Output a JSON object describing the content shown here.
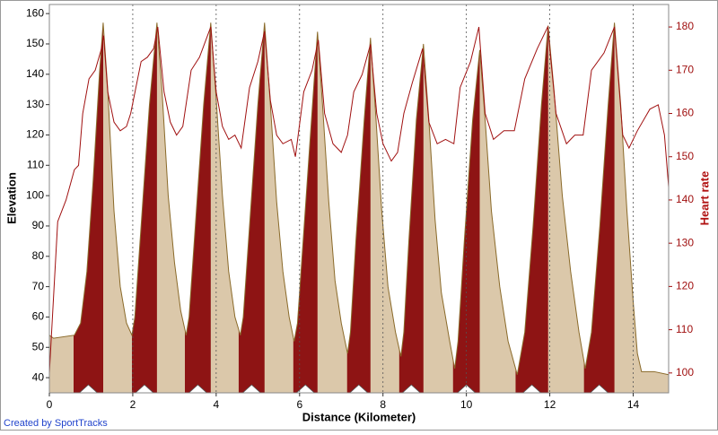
{
  "chart_data": {
    "type": "area-line",
    "xlabel": "Distance (Kilometer)",
    "ylabel": "Elevation",
    "y2label": "Heart rate",
    "xlim": [
      0,
      14.85
    ],
    "xticks": [
      0,
      2,
      4,
      6,
      8,
      10,
      12,
      14
    ],
    "ylim": [
      35,
      163
    ],
    "yticks": [
      40,
      50,
      60,
      70,
      80,
      90,
      100,
      110,
      120,
      130,
      140,
      150,
      160
    ],
    "y2lim": [
      95.4,
      185.2
    ],
    "y2ticks": [
      100,
      110,
      120,
      130,
      140,
      150,
      160,
      170,
      180
    ],
    "grid": "x",
    "highlight_color": "#8e1414",
    "highlight_ranges": [
      [
        0.58,
        1.29
      ],
      [
        1.98,
        2.58
      ],
      [
        3.25,
        3.87
      ],
      [
        4.54,
        5.16
      ],
      [
        5.85,
        6.43
      ],
      [
        7.14,
        7.7
      ],
      [
        8.39,
        8.97
      ],
      [
        9.68,
        10.32
      ],
      [
        11.18,
        11.96
      ],
      [
        12.82,
        13.55
      ]
    ],
    "series": [
      {
        "name": "Elevation",
        "color": "#dbc8aa",
        "line_color": "#8a6a2a",
        "x": [
          0,
          0.1,
          0.6,
          0.75,
          0.9,
          1.05,
          1.2,
          1.29,
          1.4,
          1.55,
          1.7,
          1.85,
          1.98,
          2.05,
          2.2,
          2.4,
          2.58,
          2.7,
          2.85,
          3.0,
          3.15,
          3.28,
          3.35,
          3.5,
          3.7,
          3.87,
          4.0,
          4.15,
          4.3,
          4.45,
          4.58,
          4.65,
          4.8,
          5.0,
          5.16,
          5.3,
          5.45,
          5.6,
          5.75,
          5.87,
          5.95,
          6.1,
          6.3,
          6.43,
          6.55,
          6.7,
          6.85,
          7.0,
          7.15,
          7.22,
          7.35,
          7.55,
          7.7,
          7.82,
          7.97,
          8.12,
          8.3,
          8.43,
          8.5,
          8.62,
          8.8,
          8.97,
          9.1,
          9.25,
          9.4,
          9.6,
          9.72,
          9.8,
          9.95,
          10.15,
          10.32,
          10.45,
          10.6,
          10.8,
          11.0,
          11.22,
          11.4,
          11.6,
          11.8,
          11.96,
          12.1,
          12.3,
          12.5,
          12.7,
          12.85,
          13.0,
          13.2,
          13.4,
          13.55,
          13.7,
          13.85,
          14.0,
          14.1,
          14.2,
          14.5,
          14.85
        ],
        "values": [
          54,
          53,
          54,
          58,
          75,
          105,
          140,
          157,
          135,
          95,
          70,
          58,
          54,
          60,
          90,
          130,
          157,
          135,
          100,
          78,
          62,
          54,
          60,
          90,
          130,
          157,
          132,
          100,
          75,
          60,
          54,
          60,
          90,
          130,
          157,
          130,
          98,
          75,
          60,
          52,
          58,
          88,
          128,
          154,
          130,
          98,
          72,
          58,
          48,
          55,
          85,
          125,
          152,
          128,
          95,
          70,
          55,
          47,
          55,
          85,
          125,
          150,
          125,
          92,
          68,
          52,
          43,
          52,
          85,
          125,
          148,
          125,
          95,
          70,
          52,
          41,
          55,
          90,
          130,
          156,
          135,
          100,
          75,
          55,
          43,
          55,
          90,
          130,
          157,
          130,
          95,
          65,
          48,
          42,
          42,
          41
        ]
      },
      {
        "name": "Heart rate",
        "color": "#a01010",
        "axis": "y2",
        "x": [
          0,
          0.2,
          0.4,
          0.6,
          0.7,
          0.8,
          0.95,
          1.1,
          1.25,
          1.3,
          1.4,
          1.55,
          1.7,
          1.85,
          1.95,
          2.2,
          2.35,
          2.5,
          2.6,
          2.75,
          2.9,
          3.05,
          3.2,
          3.4,
          3.6,
          3.87,
          4.0,
          4.15,
          4.3,
          4.45,
          4.6,
          4.8,
          5.0,
          5.16,
          5.3,
          5.45,
          5.6,
          5.8,
          5.9,
          6.1,
          6.3,
          6.45,
          6.6,
          6.8,
          7.0,
          7.15,
          7.3,
          7.5,
          7.7,
          7.85,
          8.0,
          8.2,
          8.35,
          8.5,
          8.7,
          8.95,
          9.1,
          9.3,
          9.5,
          9.7,
          9.85,
          10.1,
          10.3,
          10.45,
          10.65,
          10.9,
          11.15,
          11.4,
          11.7,
          11.95,
          12.15,
          12.4,
          12.6,
          12.8,
          13.0,
          13.3,
          13.55,
          13.75,
          13.9,
          14.1,
          14.4,
          14.6,
          14.75,
          14.85
        ],
        "values": [
          100,
          135,
          140,
          147,
          148,
          160,
          168,
          170,
          175,
          178,
          165,
          158,
          156,
          157,
          160,
          172,
          173,
          175,
          180,
          165,
          158,
          155,
          157,
          170,
          173,
          180,
          165,
          157,
          154,
          155,
          152,
          166,
          172,
          179,
          163,
          155,
          153,
          154,
          150,
          165,
          170,
          177,
          160,
          153,
          151,
          155,
          165,
          169,
          176,
          160,
          153,
          149,
          151,
          160,
          167,
          175,
          158,
          153,
          154,
          153,
          166,
          172,
          180,
          160,
          154,
          156,
          156,
          168,
          175,
          180,
          160,
          153,
          155,
          155,
          170,
          174,
          180,
          155,
          152,
          156,
          161,
          162,
          155,
          143
        ]
      }
    ]
  },
  "footer": "Created by SportTracks"
}
